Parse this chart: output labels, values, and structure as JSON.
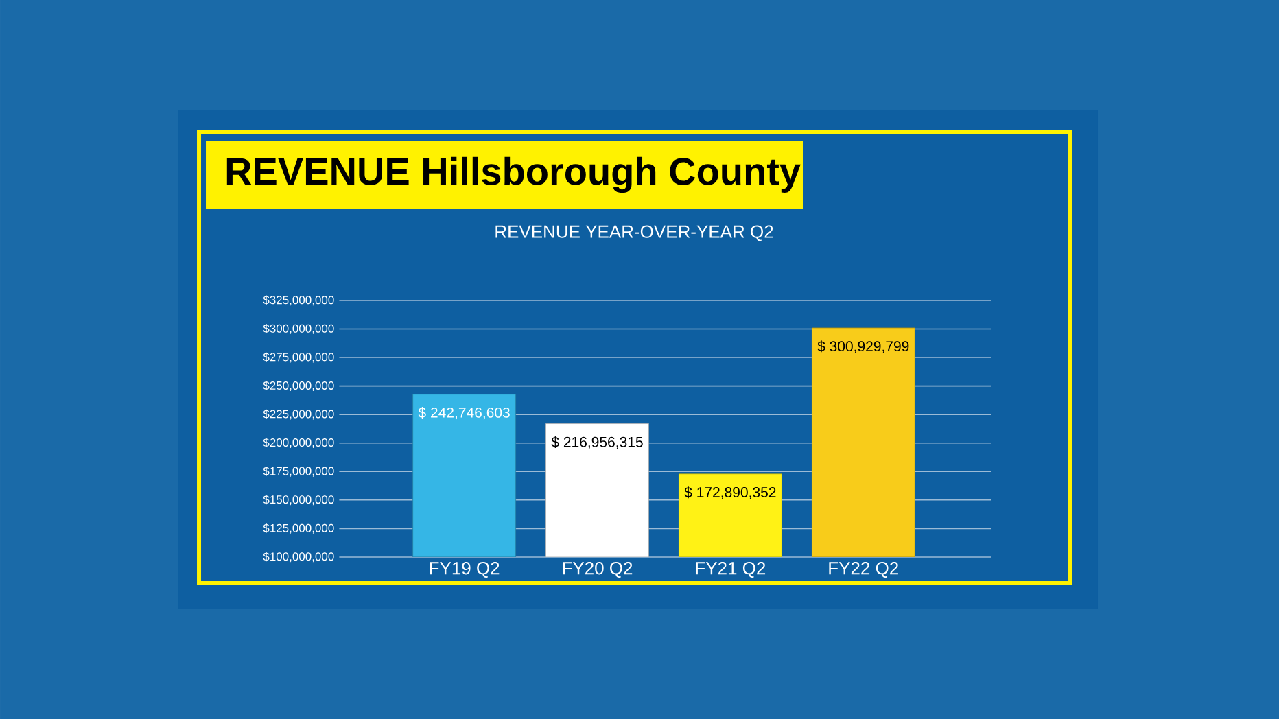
{
  "chart_data": {
    "type": "bar",
    "title": "REVENUE Hillsborough County",
    "subtitle": "REVENUE YEAR-OVER-YEAR Q2",
    "categories": [
      "FY19 Q2",
      "FY20 Q2",
      "FY21 Q2",
      "FY22 Q2"
    ],
    "values": [
      242746603,
      216956315,
      172890352,
      300929799
    ],
    "colors": [
      "#35b6e6",
      "#ffffff",
      "#fff215",
      "#f8cc1a"
    ],
    "value_labels": [
      "$ 242,746,603",
      "$ 216,956,315",
      "$ 172,890,352",
      "$ 300,929,799"
    ],
    "ylim": [
      100000000,
      325000000
    ],
    "yticks": [
      {
        "value": 100000000,
        "label": "$100,000,000"
      },
      {
        "value": 125000000,
        "label": "$125,000,000"
      },
      {
        "value": 150000000,
        "label": "$150,000,000"
      },
      {
        "value": 175000000,
        "label": "$175,000,000"
      },
      {
        "value": 200000000,
        "label": "$200,000,000"
      },
      {
        "value": 225000000,
        "label": "$225,000,000"
      },
      {
        "value": 250000000,
        "label": "$250,000,000"
      },
      {
        "value": 275000000,
        "label": "$275,000,000"
      },
      {
        "value": 300000000,
        "label": "$300,000,000"
      },
      {
        "value": 325000000,
        "label": "$325,000,000"
      }
    ],
    "grid": "y"
  }
}
